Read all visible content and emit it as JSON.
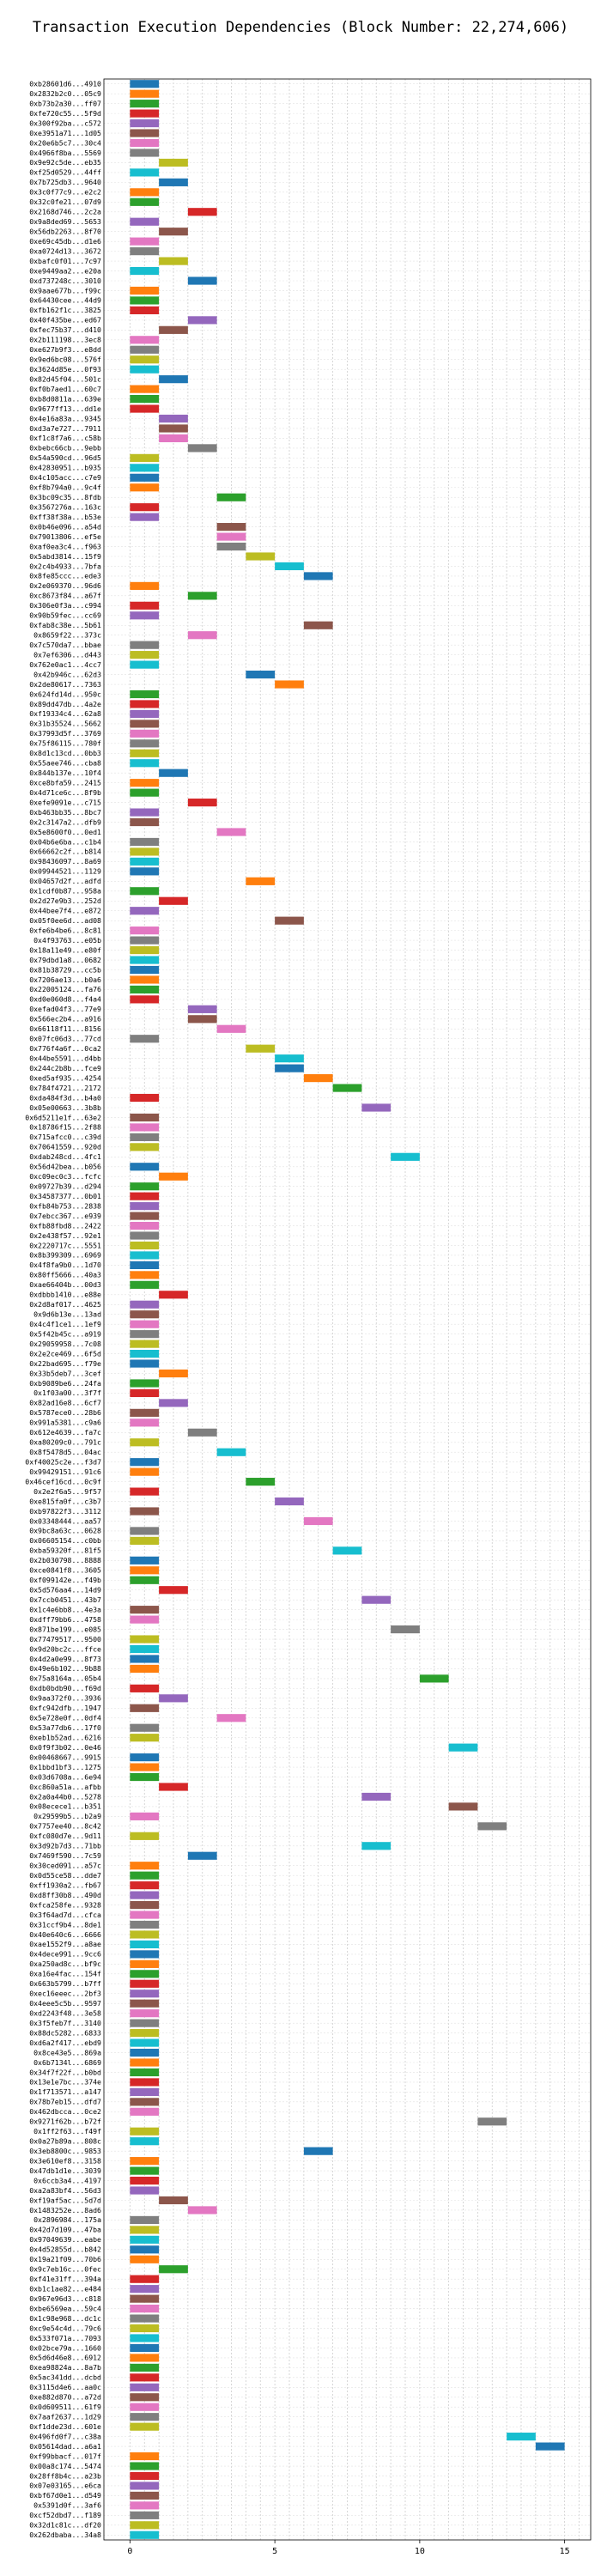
{
  "chart_data": {
    "type": "bar",
    "orientation": "horizontal-gantt",
    "title": "Transaction Execution Dependencies (Block Number: 22,274,606)",
    "xlabel": "",
    "ylabel": "",
    "xlim": [
      -0.9,
      15.9
    ],
    "x_ticks": [
      "0",
      "5",
      "10",
      "15"
    ],
    "grid": true,
    "palette": [
      "#1f77b4",
      "#ff7f0e",
      "#2ca02c",
      "#d62728",
      "#9467bd",
      "#8c564b",
      "#e377c2",
      "#7f7f7f",
      "#bcbd22",
      "#17becf"
    ],
    "transactions": [
      [
        "0xb28601d6...4910",
        0,
        0
      ],
      [
        "0x2832b2c0...05c9",
        0,
        1
      ],
      [
        "0xb73b2a30...ff07",
        0,
        2
      ],
      [
        "0xfe720c55...5f9d",
        0,
        3
      ],
      [
        "0x300f92ba...c572",
        0,
        4
      ],
      [
        "0xe3951a71...1d05",
        0,
        5
      ],
      [
        "0x20e6b5c7...30c4",
        0,
        6
      ],
      [
        "0x4966f8ba...5569",
        0,
        7
      ],
      [
        "0x9e92c5de...eb35",
        1,
        8
      ],
      [
        "0xf25d0529...44ff",
        0,
        9
      ],
      [
        "0x7b725db3...9640",
        1,
        0
      ],
      [
        "0x3c0f77c9...e2c2",
        0,
        1
      ],
      [
        "0x32c0fe21...07d9",
        0,
        2
      ],
      [
        "0x2168d746...2c2a",
        2,
        3
      ],
      [
        "0x9a8ded69...5653",
        0,
        4
      ],
      [
        "0x56db2263...8f70",
        1,
        5
      ],
      [
        "0xe69c45db...d1e6",
        0,
        6
      ],
      [
        "0xa0724d13...3672",
        0,
        7
      ],
      [
        "0xbafc0f01...7c97",
        1,
        8
      ],
      [
        "0xe9449aa2...e20a",
        0,
        9
      ],
      [
        "0xd737248c...3010",
        2,
        0
      ],
      [
        "0x9aae677b...f99c",
        0,
        1
      ],
      [
        "0x64430cee...44d9",
        0,
        2
      ],
      [
        "0xfb162f1c...3825",
        0,
        3
      ],
      [
        "0x40f435be...ed67",
        2,
        4
      ],
      [
        "0xfec75b37...d410",
        1,
        5
      ],
      [
        "0x2b111198...3ec8",
        0,
        6
      ],
      [
        "0xe627b9f3...e8dd",
        0,
        7
      ],
      [
        "0x9ed6bc08...576f",
        0,
        8
      ],
      [
        "0x3624d85e...0f93",
        0,
        9
      ],
      [
        "0x82d45f04...501c",
        1,
        0
      ],
      [
        "0xf0b7aed1...60c7",
        0,
        1
      ],
      [
        "0xb8d0811a...639e",
        0,
        2
      ],
      [
        "0x9677ff13...dd1e",
        0,
        3
      ],
      [
        "0x4e16a83a...9345",
        1,
        4
      ],
      [
        "0xd3a7e727...7911",
        1,
        5
      ],
      [
        "0xf1c8f7a6...c58b",
        1,
        6
      ],
      [
        "0xbebc66cb...9ebb",
        2,
        7
      ],
      [
        "0x54a590cd...96d5",
        0,
        8
      ],
      [
        "0x42830951...b935",
        0,
        9
      ],
      [
        "0x4c105acc...c7e9",
        0,
        0
      ],
      [
        "0xf8b794a0...9c4f",
        0,
        1
      ],
      [
        "0x3bc09c35...8fdb",
        3,
        2
      ],
      [
        "0x3567276a...163c",
        0,
        3
      ],
      [
        "0xff38f38a...b53e",
        0,
        4
      ],
      [
        "0x0b46e096...a54d",
        3,
        5
      ],
      [
        "0x79013806...ef5e",
        3,
        6
      ],
      [
        "0xaf0ea3c4...f963",
        3,
        7
      ],
      [
        "0x5abd3814...15f9",
        4,
        8
      ],
      [
        "0x2c4b4933...7bfa",
        5,
        9
      ],
      [
        "0x8fe85ccc...ede3",
        6,
        0
      ],
      [
        "0x2e069370...96d6",
        0,
        1
      ],
      [
        "0xc8673f84...a67f",
        2,
        2
      ],
      [
        "0x306e0f3a...c994",
        0,
        3
      ],
      [
        "0x90b59fec...cc69",
        0,
        4
      ],
      [
        "0xfab8c38e...5b61",
        6,
        5
      ],
      [
        "0x8659f22...373c",
        2,
        6
      ],
      [
        "0x7c570da7...bbae",
        0,
        7
      ],
      [
        "0x7ef6306...d443",
        0,
        8
      ],
      [
        "0x762e0ac1...4cc7",
        0,
        9
      ],
      [
        "0x42b946c...62d3",
        4,
        0
      ],
      [
        "0x2de80617...7363",
        5,
        1
      ],
      [
        "0x624fd14d...950c",
        0,
        2
      ],
      [
        "0x89dd47db...4a2e",
        0,
        3
      ],
      [
        "0xf19334c4...62a8",
        0,
        4
      ],
      [
        "0x31b35524...5662",
        0,
        5
      ],
      [
        "0x37993d5f...3769",
        0,
        6
      ],
      [
        "0x75f86115...780f",
        0,
        7
      ],
      [
        "0x8d1c13cd...0bb3",
        0,
        8
      ],
      [
        "0x55aee746...cba8",
        0,
        9
      ],
      [
        "0x844b137e...10f4",
        1,
        0
      ],
      [
        "0xce8bfa59...2415",
        0,
        1
      ],
      [
        "0x4d71ce6c...8f9b",
        0,
        2
      ],
      [
        "0xefe9091e...c715",
        2,
        3
      ],
      [
        "0xb463bb35...8bc7",
        0,
        4
      ],
      [
        "0x2c3147a2...dfb9",
        0,
        5
      ],
      [
        "0x5e8600f0...0ed1",
        3,
        6
      ],
      [
        "0x04b6e6ba...c1b4",
        0,
        7
      ],
      [
        "0x66662c2f...b814",
        0,
        8
      ],
      [
        "0x98436097...8a69",
        0,
        9
      ],
      [
        "0x09944521...1129",
        0,
        0
      ],
      [
        "0x04657d2f...adfd",
        4,
        1
      ],
      [
        "0x1cdf0b87...958a",
        0,
        2
      ],
      [
        "0x2d27e9b3...252d",
        1,
        3
      ],
      [
        "0x44bee7f4...e872",
        0,
        4
      ],
      [
        "0x05f0ee6d...ad08",
        5,
        5
      ],
      [
        "0xfe6b4be6...8c81",
        0,
        6
      ],
      [
        "0x4f93763...e05b",
        0,
        7
      ],
      [
        "0x18a11e49...e80f",
        0,
        8
      ],
      [
        "0x79dbd1a8...0682",
        0,
        9
      ],
      [
        "0x81b38729...cc5b",
        0,
        0
      ],
      [
        "0x7206ae13...b0a6",
        0,
        1
      ],
      [
        "0x22005124...fa76",
        0,
        2
      ],
      [
        "0xd0e060d8...f4a4",
        0,
        3
      ],
      [
        "0xefad04f3...77e9",
        2,
        4
      ],
      [
        "0x566ec2b4...a916",
        2,
        5
      ],
      [
        "0x66118f11...8156",
        3,
        6
      ],
      [
        "0x07fc06d3...77cd",
        0,
        7
      ],
      [
        "0x776f4a6f...0ca2",
        4,
        8
      ],
      [
        "0x44be5591...d4bb",
        5,
        9
      ],
      [
        "0x244c2b8b...fce9",
        5,
        0
      ],
      [
        "0xed5af935...4254",
        6,
        1
      ],
      [
        "0x784f4721...2172",
        7,
        2
      ],
      [
        "0xda484f3d...b4a0",
        0,
        3
      ],
      [
        "0x05e00663...3b8b",
        8,
        4
      ],
      [
        "0x6d5211e1f...63e2",
        0,
        5
      ],
      [
        "0x18786f15...2f88",
        0,
        6
      ],
      [
        "0x715afcc0...c39d",
        0,
        7
      ],
      [
        "0x70641559...920d",
        0,
        8
      ],
      [
        "0xdab248cd...4fc1",
        9,
        9
      ],
      [
        "0x56d42bea...b056",
        0,
        0
      ],
      [
        "0xc09ec0c3...fcfc",
        1,
        1
      ],
      [
        "0x09727b39...d294",
        0,
        2
      ],
      [
        "0x34587377...0b01",
        0,
        3
      ],
      [
        "0xfb84b753...2838",
        0,
        4
      ],
      [
        "0x7ebcc367...e939",
        0,
        5
      ],
      [
        "0xfb88fbd8...2422",
        0,
        6
      ],
      [
        "0x2e438f57...92e1",
        0,
        7
      ],
      [
        "0x2220717c...5551",
        0,
        8
      ],
      [
        "0x8b399309...6969",
        0,
        9
      ],
      [
        "0x4f8fa9b0...1d70",
        0,
        0
      ],
      [
        "0x80ff5666...40a3",
        0,
        1
      ],
      [
        "0xae66404b...00d3",
        0,
        2
      ],
      [
        "0xdbbb1410...e88e",
        1,
        3
      ],
      [
        "0x2d8af017...4625",
        0,
        4
      ],
      [
        "0x9d6b13e...13ad",
        0,
        5
      ],
      [
        "0x4c4f1ce1...1ef9",
        0,
        6
      ],
      [
        "0x5f42b45c...a919",
        0,
        7
      ],
      [
        "0x29059958...7c08",
        0,
        8
      ],
      [
        "0x2e2ce469...6f5d",
        0,
        9
      ],
      [
        "0x22bad695...f79e",
        0,
        0
      ],
      [
        "0x33b5deb7...3cef",
        1,
        1
      ],
      [
        "0xb9089be6...24fa",
        0,
        2
      ],
      [
        "0x1f03a00...3f7f",
        0,
        3
      ],
      [
        "0x82ad16e8...6cf7",
        1,
        4
      ],
      [
        "0x5787ece0...28b6",
        0,
        5
      ],
      [
        "0x991a5381...c9a6",
        0,
        6
      ],
      [
        "0x612e4639...fa7c",
        2,
        7
      ],
      [
        "0xa80209c0...791c",
        0,
        8
      ],
      [
        "0x8f5478d5...04ac",
        3,
        9
      ],
      [
        "0xf40025c2e...f3d7",
        0,
        0
      ],
      [
        "0x99429151...91c6",
        0,
        1
      ],
      [
        "0x46cef16cd...0c9f",
        4,
        2
      ],
      [
        "0x2e2f6a5...9f57",
        0,
        3
      ],
      [
        "0xe815fa0f...c3b7",
        5,
        4
      ],
      [
        "0xb97822f3...3112",
        0,
        5
      ],
      [
        "0x03348444...aa57",
        6,
        6
      ],
      [
        "0x9bc8a63c...0628",
        0,
        7
      ],
      [
        "0x06605154...c0bb",
        0,
        8
      ],
      [
        "0xba59320f...81f5",
        7,
        9
      ],
      [
        "0x2b030798...8888",
        0,
        0
      ],
      [
        "0xce0841f8...3605",
        0,
        1
      ],
      [
        "0xf099142e...f49b",
        0,
        2
      ],
      [
        "0x5d576aa4...14d9",
        1,
        3
      ],
      [
        "0x7ccb0451...43b7",
        8,
        4
      ],
      [
        "0x1c4e6bb8...4e3a",
        0,
        5
      ],
      [
        "0xdff79bb6...4758",
        0,
        6
      ],
      [
        "0x871be199...e085",
        9,
        7
      ],
      [
        "0x77479517...9500",
        0,
        8
      ],
      [
        "0x9d20bc2c...ffce",
        0,
        9
      ],
      [
        "0x4d2a0e99...8f73",
        0,
        0
      ],
      [
        "0x49e6b102...9b88",
        0,
        1
      ],
      [
        "0x75a8164a...05b4",
        10,
        2
      ],
      [
        "0xdb0bdb90...f69d",
        0,
        3
      ],
      [
        "0x9aa372f0...3936",
        1,
        4
      ],
      [
        "0xfc942dfb...1947",
        0,
        5
      ],
      [
        "0x5e728e0f...0df4",
        3,
        6
      ],
      [
        "0x53a77db6...17f0",
        0,
        7
      ],
      [
        "0xeb1b52ad...6216",
        0,
        8
      ],
      [
        "0x0f9f3b02...0e46",
        11,
        9
      ],
      [
        "0x00468667...9915",
        0,
        0
      ],
      [
        "0x1bbd1bf3...1275",
        0,
        1
      ],
      [
        "0x03d6708a...6e94",
        0,
        2
      ],
      [
        "0xc860a51a...afbb",
        1,
        3
      ],
      [
        "0x2a0a44b0...5278",
        8,
        4
      ],
      [
        "0x08ecece1...b351",
        11,
        5
      ],
      [
        "0x29599b5...b2a9",
        0,
        6
      ],
      [
        "0x7757ee40...8c42",
        12,
        7
      ],
      [
        "0xfc080d7e...9d11",
        0,
        8
      ],
      [
        "0x3d92b7d3...71bb",
        8,
        9
      ],
      [
        "0x7469f590...7c59",
        2,
        0
      ],
      [
        "0x30ced091...a57c",
        0,
        1
      ],
      [
        "0x0d55ce58...dde7",
        0,
        2
      ],
      [
        "0xff1930a2...fb67",
        0,
        3
      ],
      [
        "0xd8ff30b8...490d",
        0,
        4
      ],
      [
        "0xfca258fe...9328",
        0,
        5
      ],
      [
        "0x3f64ad7d...cfca",
        0,
        6
      ],
      [
        "0x31ccf9b4...8de1",
        0,
        7
      ],
      [
        "0x40e640c6...6666",
        0,
        8
      ],
      [
        "0xae1552f9...a8ae",
        0,
        9
      ],
      [
        "0x4dece991...9cc6",
        0,
        0
      ],
      [
        "0xa250ad8c...bf9c",
        0,
        1
      ],
      [
        "0xa16e4fac...154f",
        0,
        2
      ],
      [
        "0x663b5799...b7ff",
        0,
        3
      ],
      [
        "0xec16eeec...2bf3",
        0,
        4
      ],
      [
        "0x4eee5c5b...9597",
        0,
        5
      ],
      [
        "0xd2243f48...3e58",
        0,
        6
      ],
      [
        "0x3f5feb7f...3140",
        0,
        7
      ],
      [
        "0x88dc5282...6833",
        0,
        8
      ],
      [
        "0xd6a2f417...ebd9",
        0,
        9
      ],
      [
        "0x8ce43e5...869a",
        0,
        0
      ],
      [
        "0x6b7134l...6869",
        0,
        1
      ],
      [
        "0x34f7f22f...b0bd",
        0,
        2
      ],
      [
        "0x13e1e7bc...374e",
        0,
        3
      ],
      [
        "0x1f713571...a147",
        0,
        4
      ],
      [
        "0x78b7eb15...dfd7",
        0,
        5
      ],
      [
        "0x462dbcca...0ce2",
        0,
        6
      ],
      [
        "0x9271f62b...b72f",
        12,
        7
      ],
      [
        "0x1ff2f63...f49f",
        0,
        8
      ],
      [
        "0x0a27b89a...808c",
        0,
        9
      ],
      [
        "0x3eb8800c...9853",
        6,
        0
      ],
      [
        "0x3e610ef8...3158",
        0,
        1
      ],
      [
        "0x47db1d1e...3039",
        0,
        2
      ],
      [
        "0x6ccb3a4...4197",
        0,
        3
      ],
      [
        "0xa2a83bf4...56d3",
        0,
        4
      ],
      [
        "0xf19af5ac...5d7d",
        1,
        5
      ],
      [
        "0x1483252e...8ad6",
        2,
        6
      ],
      [
        "0x2896984...175a",
        0,
        7
      ],
      [
        "0x42d7d109...47ba",
        0,
        8
      ],
      [
        "0x97049639...eabe",
        0,
        9
      ],
      [
        "0x4d52855d...b842",
        0,
        0
      ],
      [
        "0x19a21f09...70b6",
        0,
        1
      ],
      [
        "0x9c7eb16c...0fec",
        1,
        2
      ],
      [
        "0xf41e31ff...394a",
        0,
        3
      ],
      [
        "0xb1c1ae82...e484",
        0,
        4
      ],
      [
        "0x967e96d3...c818",
        0,
        5
      ],
      [
        "0xbe6569ea...59c4",
        0,
        6
      ],
      [
        "0x1c98e968...dc1c",
        0,
        7
      ],
      [
        "0xc9e54c4d...79c6",
        0,
        8
      ],
      [
        "0x533f071a...7093",
        0,
        9
      ],
      [
        "0x02bce79a...1660",
        0,
        0
      ],
      [
        "0x5d6d46e8...6912",
        0,
        1
      ],
      [
        "0xea98824a...8a7b",
        0,
        2
      ],
      [
        "0x5ac341dd...dcbd",
        0,
        3
      ],
      [
        "0x3115d4e6...aa0c",
        0,
        4
      ],
      [
        "0xe882d870...a72d",
        0,
        5
      ],
      [
        "0x0d609511...61f9",
        0,
        6
      ],
      [
        "0x7aaf2637...1d29",
        0,
        7
      ],
      [
        "0xf1dde23d...601e",
        0,
        8
      ],
      [
        "0x496fd0f7...c38a",
        13,
        9
      ],
      [
        "0x05614dad...a6a1",
        14,
        0
      ],
      [
        "0xf99bbacf...017f",
        0,
        1
      ],
      [
        "0x00a8c174...5474",
        0,
        2
      ],
      [
        "0x28ff8b4c...a23b",
        0,
        3
      ],
      [
        "0x07e03165...e6ca",
        0,
        4
      ],
      [
        "0xbf67d0e1...d549",
        0,
        5
      ],
      [
        "0x5391d0f...3af6",
        0,
        6
      ],
      [
        "0xcf52dbd7...f189",
        0,
        7
      ],
      [
        "0x32d1c81c...df20",
        0,
        8
      ],
      [
        "0x262dbaba...34a8",
        0,
        9
      ]
    ]
  }
}
